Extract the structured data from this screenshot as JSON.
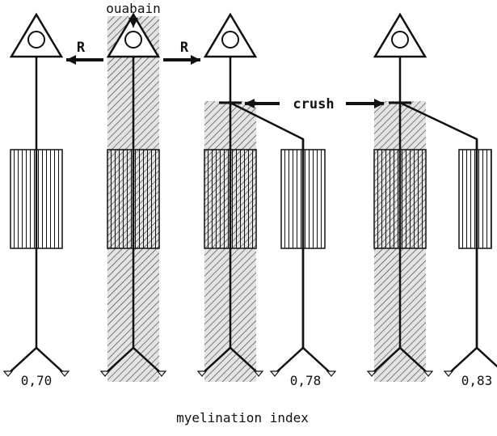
{
  "labels": {
    "drug": "ouabain",
    "left_arrow": "R",
    "right_arrow": "R",
    "lesion": "crush"
  },
  "values": [
    "0,70",
    "0,78",
    "0,83"
  ],
  "axis_label": "myelination index"
}
